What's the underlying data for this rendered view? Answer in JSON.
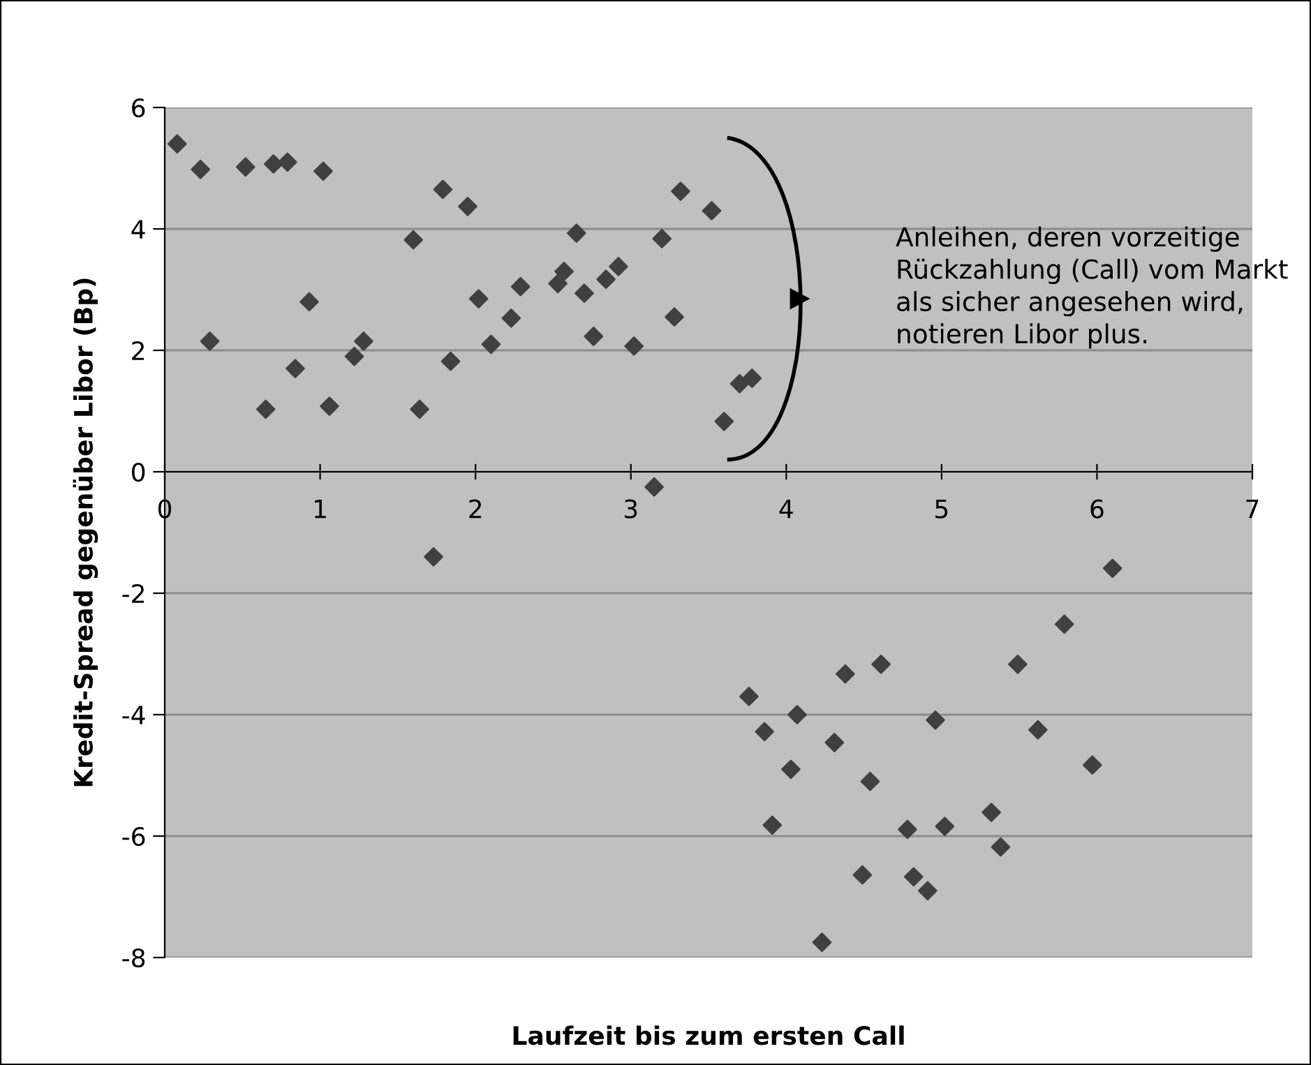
{
  "chart_data": {
    "type": "scatter",
    "xlabel": "Laufzeit bis zum ersten Call",
    "ylabel": "Kredit-Spread gegenüber Libor (Bp)",
    "annotations": [
      "Anleihen, deren vorzeitige Rückzahlung (Call) vom Markt als sicher angesehen wird, notieren Libor plus."
    ],
    "series": [
      {
        "color": "#404040",
        "x": [
          0.08,
          0.23,
          0.29,
          0.52,
          0.65,
          0.7,
          0.79,
          0.84,
          0.93,
          1.02,
          1.06,
          1.22,
          1.28,
          1.6,
          1.64,
          1.73,
          1.79,
          1.84,
          1.95,
          2.02,
          2.1,
          2.23,
          2.29,
          2.53,
          2.57,
          2.65,
          2.7,
          2.76,
          2.84,
          2.92,
          3.02,
          3.15,
          3.2,
          3.28,
          3.32,
          3.52,
          3.6,
          3.7,
          3.78,
          3.76,
          3.86,
          3.91,
          4.03,
          4.07,
          4.23,
          4.31,
          4.38,
          4.49,
          4.54,
          4.61,
          4.78,
          4.82,
          4.91,
          4.96,
          5.02,
          5.32,
          5.38,
          5.49,
          5.62,
          5.79,
          5.97,
          6.1
        ],
        "values": [
          5.4,
          4.98,
          2.15,
          5.02,
          1.03,
          5.07,
          5.1,
          1.7,
          2.8,
          4.95,
          1.08,
          1.9,
          2.15,
          3.82,
          1.03,
          -1.4,
          4.65,
          1.82,
          4.37,
          2.85,
          2.1,
          2.53,
          3.05,
          3.1,
          3.3,
          3.93,
          2.94,
          2.23,
          3.17,
          3.38,
          2.07,
          -0.25,
          3.84,
          2.55,
          4.62,
          4.3,
          0.83,
          1.45,
          1.54,
          -3.7,
          -4.28,
          -5.82,
          -4.9,
          -4.0,
          -7.75,
          -4.46,
          -3.33,
          -6.64,
          -5.1,
          -3.17,
          -5.89,
          -6.67,
          -6.9,
          -4.09,
          -5.84,
          -5.61,
          -6.18,
          -3.17,
          -4.25,
          -2.51,
          -4.83,
          -1.59
        ]
      }
    ],
    "xlim": [
      0,
      7
    ],
    "ylim": [
      -8,
      6
    ],
    "xticks": [
      0,
      1,
      2,
      3,
      4,
      5,
      6,
      7
    ],
    "yticks": [
      -8,
      -6,
      -4,
      -2,
      0,
      2,
      4,
      6
    ],
    "grid": "y",
    "marker": "diamond",
    "legend": false
  }
}
